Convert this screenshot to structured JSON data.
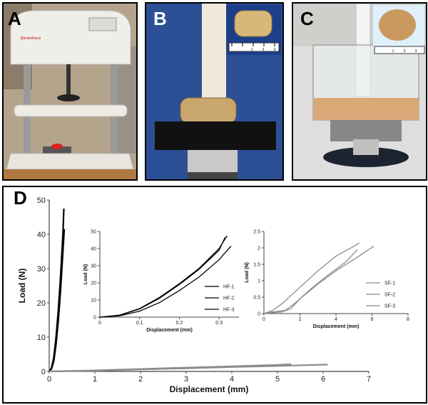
{
  "panels": {
    "a": {
      "letter": "A"
    },
    "b": {
      "letter": "B"
    },
    "c": {
      "letter": "C"
    },
    "d": {
      "letter": "D"
    }
  },
  "photo_text": {
    "machine_label": "ElectroForce",
    "ruler_ticks_b": [
      "1",
      "2",
      "3"
    ],
    "ruler_ticks_c": [
      "1",
      "2",
      "3"
    ]
  },
  "chart_data": [
    {
      "type": "line",
      "xlabel": "Displacement (mm)",
      "ylabel": "Load (N)",
      "xlim": [
        0,
        7
      ],
      "ylim": [
        0,
        50
      ],
      "xticks": [
        "0",
        "1",
        "2",
        "3",
        "4",
        "5",
        "6",
        "7"
      ],
      "yticks": [
        "0",
        "10",
        "20",
        "30",
        "40",
        "50"
      ],
      "series": [
        {
          "name": "HF",
          "color": "#000000",
          "x": [
            0,
            0.05,
            0.1,
            0.15,
            0.2,
            0.25,
            0.3,
            0.32
          ],
          "y": [
            0,
            1,
            4,
            10,
            18,
            28,
            40,
            47.5
          ]
        },
        {
          "name": "HF",
          "color": "#000000",
          "x": [
            0,
            0.05,
            0.1,
            0.15,
            0.2,
            0.25,
            0.3,
            0.33
          ],
          "y": [
            0,
            0.8,
            3,
            8,
            15,
            24,
            35,
            41.5
          ]
        },
        {
          "name": "SF",
          "color": "#8c8c8c",
          "x": [
            0,
            1,
            2,
            3,
            4,
            5,
            5.3
          ],
          "y": [
            0,
            0.3,
            0.7,
            1.1,
            1.5,
            1.9,
            2.1
          ]
        },
        {
          "name": "SF",
          "color": "#8c8c8c",
          "x": [
            0,
            1,
            2,
            3,
            4,
            5,
            6.1
          ],
          "y": [
            0,
            0.2,
            0.6,
            0.9,
            1.3,
            1.6,
            2.0
          ]
        }
      ]
    },
    {
      "type": "line",
      "xlabel": "Displacement (mm)",
      "ylabel": "Load (N)",
      "xlim": [
        0,
        0.35
      ],
      "ylim": [
        0,
        50
      ],
      "xticks": [
        "0",
        "0.1",
        "0.2",
        "0.3"
      ],
      "yticks": [
        "0",
        "10",
        "20",
        "30",
        "40",
        "50"
      ],
      "legend": [
        "HF-1",
        "HF-2",
        "HF-3"
      ],
      "series": [
        {
          "name": "HF-1",
          "color": "#000000",
          "x": [
            0,
            0.05,
            0.1,
            0.15,
            0.2,
            0.25,
            0.3,
            0.32
          ],
          "y": [
            0,
            1.2,
            5,
            11.5,
            19.5,
            28.5,
            40,
            47.5
          ]
        },
        {
          "name": "HF-2",
          "color": "#000000",
          "x": [
            0,
            0.05,
            0.1,
            0.15,
            0.2,
            0.25,
            0.3,
            0.315
          ],
          "y": [
            0,
            1.1,
            4.8,
            11,
            19,
            28,
            39,
            46.5
          ]
        },
        {
          "name": "HF-3",
          "color": "#000000",
          "x": [
            0,
            0.05,
            0.1,
            0.15,
            0.2,
            0.25,
            0.3,
            0.33
          ],
          "y": [
            0,
            0.8,
            3.5,
            8.5,
            15.5,
            23.5,
            33.5,
            41.5
          ]
        }
      ]
    },
    {
      "type": "line",
      "xlabel": "Displacement (mm)",
      "ylabel": "Load (N)",
      "xlim": [
        0,
        8
      ],
      "ylim": [
        0,
        2.5
      ],
      "xticks": [
        "0",
        "2",
        "4",
        "6",
        "8"
      ],
      "yticks": [
        "0",
        "0.5",
        "1",
        "1.5",
        "2",
        "2.5"
      ],
      "legend": [
        "SF-1",
        "SF-2",
        "SF-3"
      ],
      "series": [
        {
          "name": "SF-1",
          "color": "#8c8c8c",
          "x": [
            0,
            0.5,
            1,
            1.5,
            2,
            3,
            4,
            5,
            5.3
          ],
          "y": [
            0,
            0.1,
            0.3,
            0.55,
            0.8,
            1.3,
            1.75,
            2.05,
            2.15
          ]
        },
        {
          "name": "SF-2",
          "color": "#8c8c8c",
          "x": [
            0,
            0.5,
            1.2,
            1.8,
            2.5,
            3.5,
            4.5,
            5.2
          ],
          "y": [
            0,
            0.05,
            0.1,
            0.35,
            0.7,
            1.15,
            1.55,
            1.95
          ]
        },
        {
          "name": "SF-3",
          "color": "#8c8c8c",
          "x": [
            0,
            1,
            1.5,
            2,
            3,
            4,
            5,
            6.1
          ],
          "y": [
            0,
            0.05,
            0.15,
            0.45,
            0.9,
            1.3,
            1.65,
            2.05
          ]
        }
      ]
    }
  ]
}
